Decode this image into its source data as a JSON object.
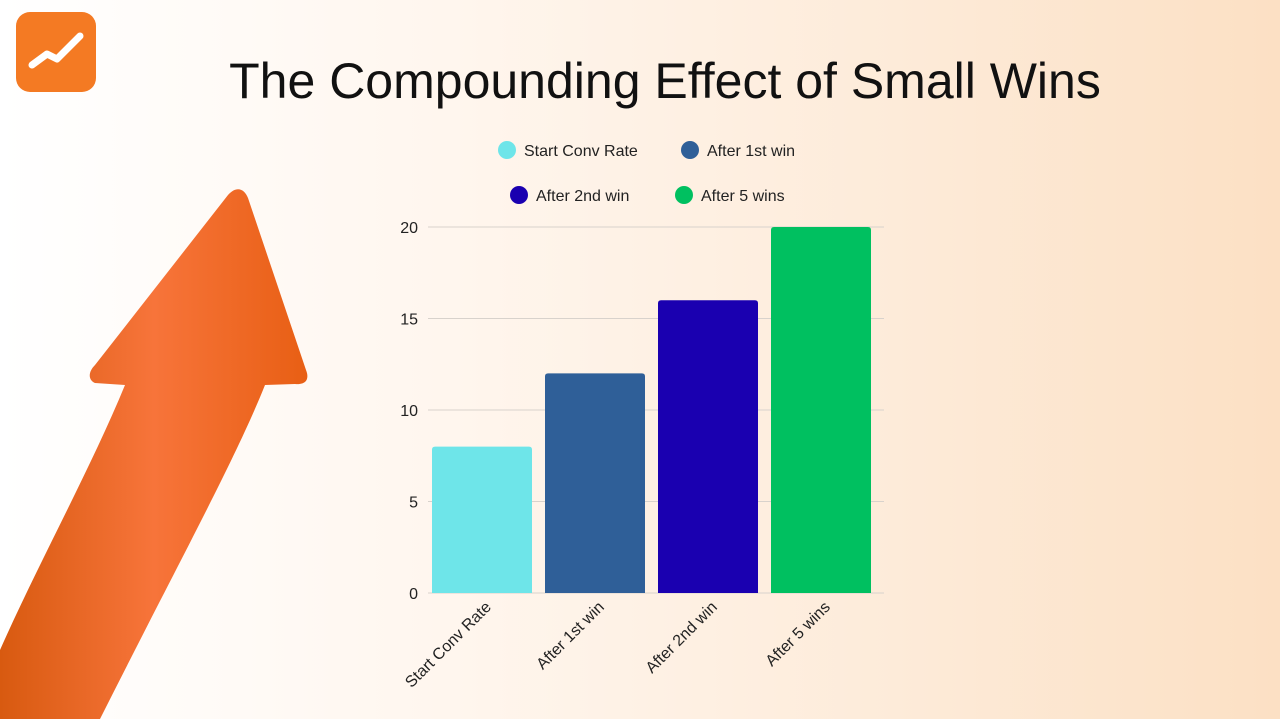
{
  "logo": {
    "icon": "trending-up-icon",
    "color": "#f47a23"
  },
  "title": "The Compounding Effect of Small Wins",
  "decoration": {
    "icon": "upward-arrow-icon",
    "color": "#f26a1b"
  },
  "chart_data": {
    "type": "bar",
    "title": "",
    "categories": [
      "Start Conv Rate",
      "After 1st win",
      "After 2nd win",
      "After 5 wins"
    ],
    "values": [
      8,
      12,
      16,
      20
    ],
    "colors": [
      "#6ee5e9",
      "#2f5f98",
      "#1a00b0",
      "#00c060"
    ],
    "legend": {
      "placement": "top",
      "entries": [
        "Start Conv Rate",
        "After 1st win",
        "After 2nd win",
        "After 5 wins"
      ]
    },
    "ylim": [
      0,
      20
    ],
    "yticks": [
      0,
      5,
      10,
      15,
      20
    ],
    "grid": true,
    "xlabel": "",
    "ylabel": ""
  }
}
